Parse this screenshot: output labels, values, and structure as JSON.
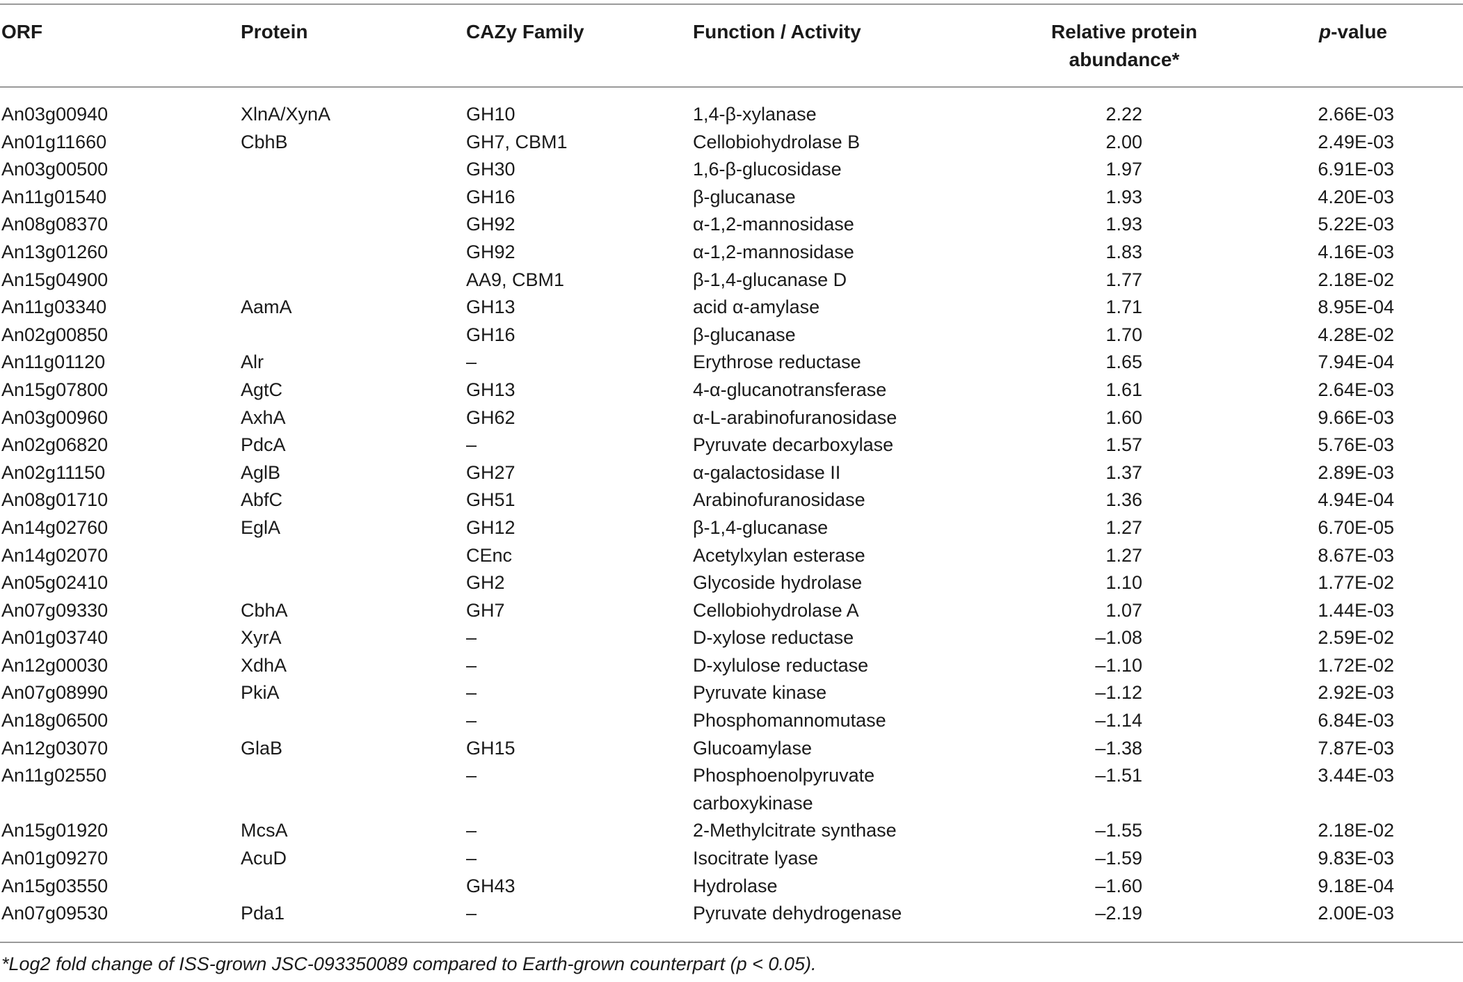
{
  "headers": {
    "orf": "ORF",
    "protein": "Protein",
    "cazy": "CAZy Family",
    "function": "Function / Activity",
    "abundance_line1": "Relative protein",
    "abundance_line2": "abundance*",
    "pvalue_italic": "p",
    "pvalue_rest": "-value"
  },
  "rows": [
    {
      "orf": "An03g00940",
      "protein": "XlnA/XynA",
      "cazy": "GH10",
      "function": "1,4-β-xylanase",
      "abundance": "2.22",
      "pvalue": "2.66E-03"
    },
    {
      "orf": "An01g11660",
      "protein": "CbhB",
      "cazy": "GH7, CBM1",
      "function": "Cellobiohydrolase B",
      "abundance": "2.00",
      "pvalue": "2.49E-03"
    },
    {
      "orf": "An03g00500",
      "protein": "",
      "cazy": "GH30",
      "function": "1,6-β-glucosidase",
      "abundance": "1.97",
      "pvalue": "6.91E-03"
    },
    {
      "orf": "An11g01540",
      "protein": "",
      "cazy": "GH16",
      "function": "β-glucanase",
      "abundance": "1.93",
      "pvalue": "4.20E-03"
    },
    {
      "orf": "An08g08370",
      "protein": "",
      "cazy": "GH92",
      "function": "α-1,2-mannosidase",
      "abundance": "1.93",
      "pvalue": "5.22E-03"
    },
    {
      "orf": "An13g01260",
      "protein": "",
      "cazy": "GH92",
      "function": "α-1,2-mannosidase",
      "abundance": "1.83",
      "pvalue": "4.16E-03"
    },
    {
      "orf": "An15g04900",
      "protein": "",
      "cazy": "AA9, CBM1",
      "function": "β-1,4-glucanase D",
      "abundance": "1.77",
      "pvalue": "2.18E-02"
    },
    {
      "orf": "An11g03340",
      "protein": "AamA",
      "cazy": "GH13",
      "function": "acid α-amylase",
      "abundance": "1.71",
      "pvalue": "8.95E-04"
    },
    {
      "orf": "An02g00850",
      "protein": "",
      "cazy": "GH16",
      "function": "β-glucanase",
      "abundance": "1.70",
      "pvalue": "4.28E-02"
    },
    {
      "orf": "An11g01120",
      "protein": "Alr",
      "cazy": "–",
      "function": "Erythrose reductase",
      "abundance": "1.65",
      "pvalue": "7.94E-04"
    },
    {
      "orf": "An15g07800",
      "protein": "AgtC",
      "cazy": "GH13",
      "function": "4-α-glucanotransferase",
      "abundance": "1.61",
      "pvalue": "2.64E-03"
    },
    {
      "orf": "An03g00960",
      "protein": "AxhA",
      "cazy": "GH62",
      "function": "α-L-arabinofuranosidase",
      "abundance": "1.60",
      "pvalue": "9.66E-03"
    },
    {
      "orf": "An02g06820",
      "protein": "PdcA",
      "cazy": "–",
      "function": "Pyruvate decarboxylase",
      "abundance": "1.57",
      "pvalue": "5.76E-03"
    },
    {
      "orf": "An02g11150",
      "protein": "AglB",
      "cazy": "GH27",
      "function": "α-galactosidase II",
      "abundance": "1.37",
      "pvalue": "2.89E-03"
    },
    {
      "orf": "An08g01710",
      "protein": "AbfC",
      "cazy": "GH51",
      "function": "Arabinofuranosidase",
      "abundance": "1.36",
      "pvalue": "4.94E-04"
    },
    {
      "orf": "An14g02760",
      "protein": "EglA",
      "cazy": "GH12",
      "function": "β-1,4-glucanase",
      "abundance": "1.27",
      "pvalue": "6.70E-05"
    },
    {
      "orf": "An14g02070",
      "protein": "",
      "cazy": "CEnc",
      "function": "Acetylxylan esterase",
      "abundance": "1.27",
      "pvalue": "8.67E-03"
    },
    {
      "orf": "An05g02410",
      "protein": "",
      "cazy": "GH2",
      "function": "Glycoside hydrolase",
      "abundance": "1.10",
      "pvalue": "1.77E-02"
    },
    {
      "orf": "An07g09330",
      "protein": "CbhA",
      "cazy": "GH7",
      "function": "Cellobiohydrolase A",
      "abundance": "1.07",
      "pvalue": "1.44E-03"
    },
    {
      "orf": "An01g03740",
      "protein": "XyrA",
      "cazy": "–",
      "function": "D-xylose reductase",
      "abundance": "–1.08",
      "pvalue": "2.59E-02"
    },
    {
      "orf": "An12g00030",
      "protein": "XdhA",
      "cazy": "–",
      "function": "D-xylulose reductase",
      "abundance": "–1.10",
      "pvalue": "1.72E-02"
    },
    {
      "orf": "An07g08990",
      "protein": "PkiA",
      "cazy": "–",
      "function": "Pyruvate kinase",
      "abundance": "–1.12",
      "pvalue": "2.92E-03"
    },
    {
      "orf": "An18g06500",
      "protein": "",
      "cazy": "–",
      "function": "Phosphomannomutase",
      "abundance": "–1.14",
      "pvalue": "6.84E-03"
    },
    {
      "orf": "An12g03070",
      "protein": "GlaB",
      "cazy": "GH15",
      "function": "Glucoamylase",
      "abundance": "–1.38",
      "pvalue": "7.87E-03"
    },
    {
      "orf": "An11g02550",
      "protein": "",
      "cazy": "–",
      "function": "Phosphoenolpyruvate carboxykinase",
      "abundance": "–1.51",
      "pvalue": "3.44E-03",
      "tall": true
    },
    {
      "orf": "An15g01920",
      "protein": "McsA",
      "cazy": "–",
      "function": "2-Methylcitrate synthase",
      "abundance": "–1.55",
      "pvalue": "2.18E-02"
    },
    {
      "orf": "An01g09270",
      "protein": "AcuD",
      "cazy": "–",
      "function": "Isocitrate lyase",
      "abundance": "–1.59",
      "pvalue": "9.83E-03"
    },
    {
      "orf": "An15g03550",
      "protein": "",
      "cazy": "GH43",
      "function": "Hydrolase",
      "abundance": "–1.60",
      "pvalue": "9.18E-04"
    },
    {
      "orf": "An07g09530",
      "protein": "Pda1",
      "cazy": "–",
      "function": "Pyruvate dehydrogenase",
      "abundance": "–2.19",
      "pvalue": "2.00E-03"
    }
  ],
  "footnote": "*Log2 fold change of ISS-grown JSC-093350089 compared to Earth-grown counterpart (p < 0.05)."
}
